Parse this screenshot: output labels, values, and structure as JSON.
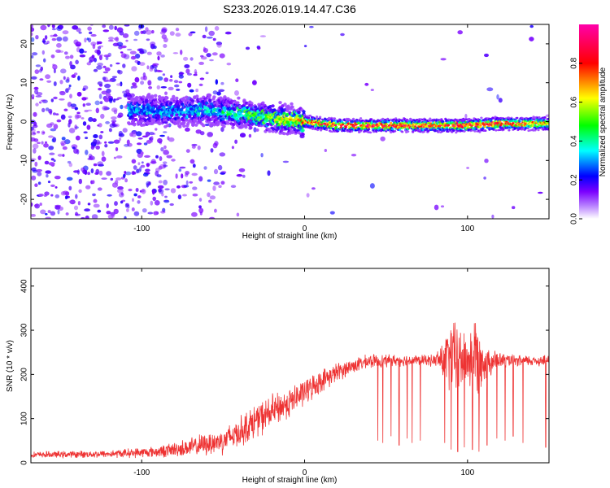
{
  "chart_data": [
    {
      "type": "heatmap",
      "title": "S233.2026.019.14.47.C36",
      "xlabel": "Height of straight line (km)",
      "ylabel": "Frequency (Hz)",
      "xlim": [
        -168,
        150
      ],
      "ylim": [
        -25,
        25
      ],
      "xticks": [
        -100,
        0,
        100
      ],
      "xtick_labels": [
        "-100",
        "0",
        "100"
      ],
      "yticks": [
        -20,
        -10,
        0,
        10,
        20
      ],
      "ytick_labels": [
        "-20",
        "-10",
        "0",
        "10",
        "20"
      ],
      "colorbar": {
        "label": "Normalized spectral amplitude",
        "range": [
          0,
          1
        ],
        "ticks": [
          0,
          0.2,
          0.4,
          0.6,
          0.8
        ],
        "tick_labels": [
          "0.0",
          "0.2",
          "0.4",
          "0.6",
          "0.8"
        ],
        "colormap": [
          "#ffffff",
          "#7b00ff",
          "#0000ff",
          "#00ffff",
          "#00ff00",
          "#ffff00",
          "#ff0000",
          "#ff00aa"
        ]
      },
      "ridge": {
        "description_points_x": [
          -100,
          -80,
          -60,
          -40,
          -20,
          0,
          20,
          40,
          60,
          80,
          100,
          120,
          150
        ],
        "description_points_freq": [
          3,
          2.5,
          3,
          2,
          1,
          0,
          -1,
          -1,
          -1,
          -1,
          -1,
          -0.5,
          -0.5
        ],
        "peak_amplitude": [
          0.35,
          0.35,
          0.4,
          0.5,
          0.6,
          0.8,
          0.95,
          0.95,
          0.95,
          0.9,
          0.95,
          0.9,
          0.75
        ]
      }
    },
    {
      "type": "line",
      "xlabel": "Height of straight line (km)",
      "ylabel": "SNR (10 * v/v)",
      "xlim": [
        -168,
        150
      ],
      "ylim": [
        0,
        440
      ],
      "xticks": [
        -100,
        0,
        100
      ],
      "xtick_labels": [
        "-100",
        "0",
        "100"
      ],
      "yticks": [
        0,
        100,
        200,
        300,
        400
      ],
      "ytick_labels": [
        "0",
        "100",
        "200",
        "300",
        "400"
      ],
      "color": "#ee3333",
      "envelope": {
        "x": [
          -168,
          -120,
          -90,
          -70,
          -50,
          -40,
          -30,
          -20,
          -10,
          0,
          10,
          20,
          30,
          40,
          60,
          80,
          85,
          90,
          95,
          100,
          105,
          110,
          120,
          130,
          150
        ],
        "mean": [
          18,
          20,
          25,
          35,
          50,
          70,
          95,
          115,
          135,
          160,
          185,
          205,
          220,
          230,
          232,
          232,
          235,
          240,
          235,
          232,
          240,
          230,
          232,
          230,
          232
        ],
        "spread": [
          8,
          10,
          15,
          25,
          35,
          40,
          45,
          45,
          40,
          35,
          30,
          25,
          20,
          18,
          15,
          15,
          60,
          100,
          90,
          70,
          120,
          50,
          20,
          15,
          15
        ]
      },
      "dropouts_x": [
        45,
        48,
        53,
        58,
        63,
        66,
        71,
        86,
        90,
        94,
        98,
        103,
        107,
        112,
        118,
        123,
        128,
        134,
        148
      ],
      "dropouts_y": [
        50,
        45,
        60,
        40,
        55,
        45,
        50,
        45,
        30,
        25,
        35,
        30,
        25,
        40,
        55,
        50,
        60,
        45,
        35
      ]
    }
  ]
}
